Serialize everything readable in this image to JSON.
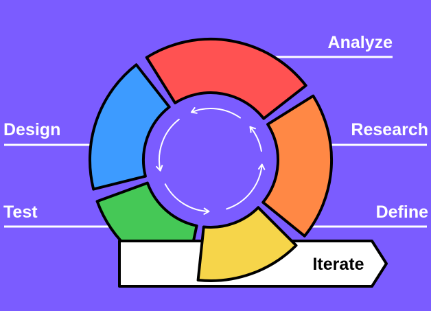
{
  "labels": {
    "analyze": "Analyze",
    "research": "Research",
    "define": "Define",
    "design": "Design",
    "test": "Test",
    "iterate": "Iterate"
  },
  "colors": {
    "background": "#7b5cff",
    "analyze": "#ff5252",
    "research": "#ff8845",
    "define": "#f6d54a",
    "design": "#3d9bff",
    "test": "#45c856",
    "iterate": "#ffffff",
    "outline": "#000000",
    "lines": "#ffffff"
  }
}
